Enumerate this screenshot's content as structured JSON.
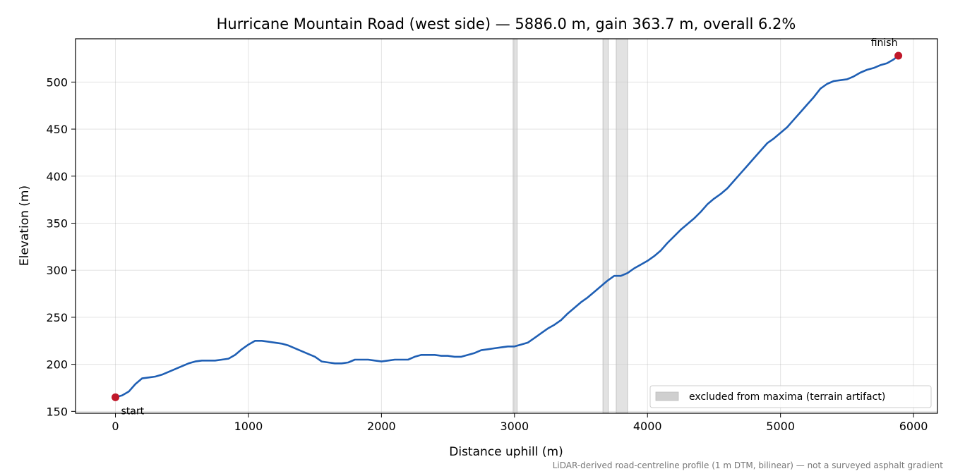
{
  "chart_data": {
    "type": "line",
    "title": "Hurricane Mountain Road (west side) — 5886.0 m, gain 363.7 m, overall 6.2%",
    "xlabel": "Distance uphill (m)",
    "ylabel": "Elevation (m)",
    "xlim": [
      -300,
      6180
    ],
    "ylim": [
      148,
      546
    ],
    "xticks": [
      0,
      1000,
      2000,
      3000,
      4000,
      5000,
      6000
    ],
    "yticks": [
      150,
      200,
      250,
      300,
      350,
      400,
      450,
      500
    ],
    "grid": true,
    "legend_placement": "lower-right",
    "line_color": "#1f5fb4",
    "marker_color": "#c0182a",
    "band_color": "#cfcfcf",
    "series": [
      {
        "x": [
          0,
          50,
          100,
          150,
          200,
          250,
          300,
          350,
          400,
          450,
          500,
          550,
          600,
          650,
          700,
          750,
          800,
          850,
          900,
          950,
          1000,
          1050,
          1100,
          1150,
          1200,
          1250,
          1300,
          1350,
          1400,
          1450,
          1500,
          1550,
          1600,
          1650,
          1700,
          1750,
          1800,
          1850,
          1900,
          1950,
          2000,
          2050,
          2100,
          2150,
          2200,
          2250,
          2300,
          2350,
          2400,
          2450,
          2500,
          2550,
          2600,
          2650,
          2700,
          2750,
          2800,
          2850,
          2900,
          2950,
          3000,
          3050,
          3100,
          3150,
          3200,
          3250,
          3300,
          3350,
          3400,
          3450,
          3500,
          3550,
          3600,
          3650,
          3700,
          3750,
          3800,
          3850,
          3900,
          3950,
          4000,
          4050,
          4100,
          4150,
          4200,
          4250,
          4300,
          4350,
          4400,
          4450,
          4500,
          4550,
          4600,
          4650,
          4700,
          4750,
          4800,
          4850,
          4900,
          4950,
          5000,
          5050,
          5100,
          5150,
          5200,
          5250,
          5300,
          5350,
          5400,
          5450,
          5500,
          5550,
          5600,
          5650,
          5700,
          5750,
          5800,
          5850,
          5886
        ],
        "y": [
          165,
          167,
          171,
          179,
          185,
          186,
          187,
          189,
          192,
          195,
          198,
          201,
          203,
          204,
          204,
          204,
          205,
          206,
          210,
          216,
          221,
          225,
          225,
          224,
          223,
          222,
          220,
          217,
          214,
          211,
          208,
          203,
          202,
          201,
          201,
          202,
          205,
          205,
          205,
          204,
          203,
          204,
          205,
          205,
          205,
          208,
          210,
          210,
          210,
          209,
          209,
          208,
          208,
          210,
          212,
          215,
          216,
          217,
          218,
          219,
          219,
          221,
          223,
          228,
          233,
          238,
          242,
          247,
          254,
          260,
          266,
          271,
          277,
          283,
          289,
          294,
          294,
          297,
          302,
          306,
          310,
          315,
          321,
          329,
          336,
          343,
          349,
          355,
          362,
          370,
          376,
          381,
          387,
          395,
          403,
          411,
          419,
          427,
          435,
          440,
          446,
          452,
          460,
          468,
          476,
          484,
          493,
          498,
          501,
          502,
          503,
          506,
          510,
          513,
          515,
          518,
          520,
          524,
          528
        ]
      }
    ],
    "excluded_bands": [
      {
        "x0": 2990,
        "x1": 3020
      },
      {
        "x0": 3665,
        "x1": 3705
      },
      {
        "x0": 3765,
        "x1": 3850
      }
    ],
    "points": [
      {
        "label": "start",
        "x": 0,
        "y": 165
      },
      {
        "label": "finish",
        "x": 5886,
        "y": 528
      }
    ],
    "legend": {
      "band_label": "excluded from maxima (terrain artifact)"
    },
    "footnote": "LiDAR-derived road-centreline profile (1 m DTM, bilinear) — not a surveyed asphalt gradient"
  }
}
